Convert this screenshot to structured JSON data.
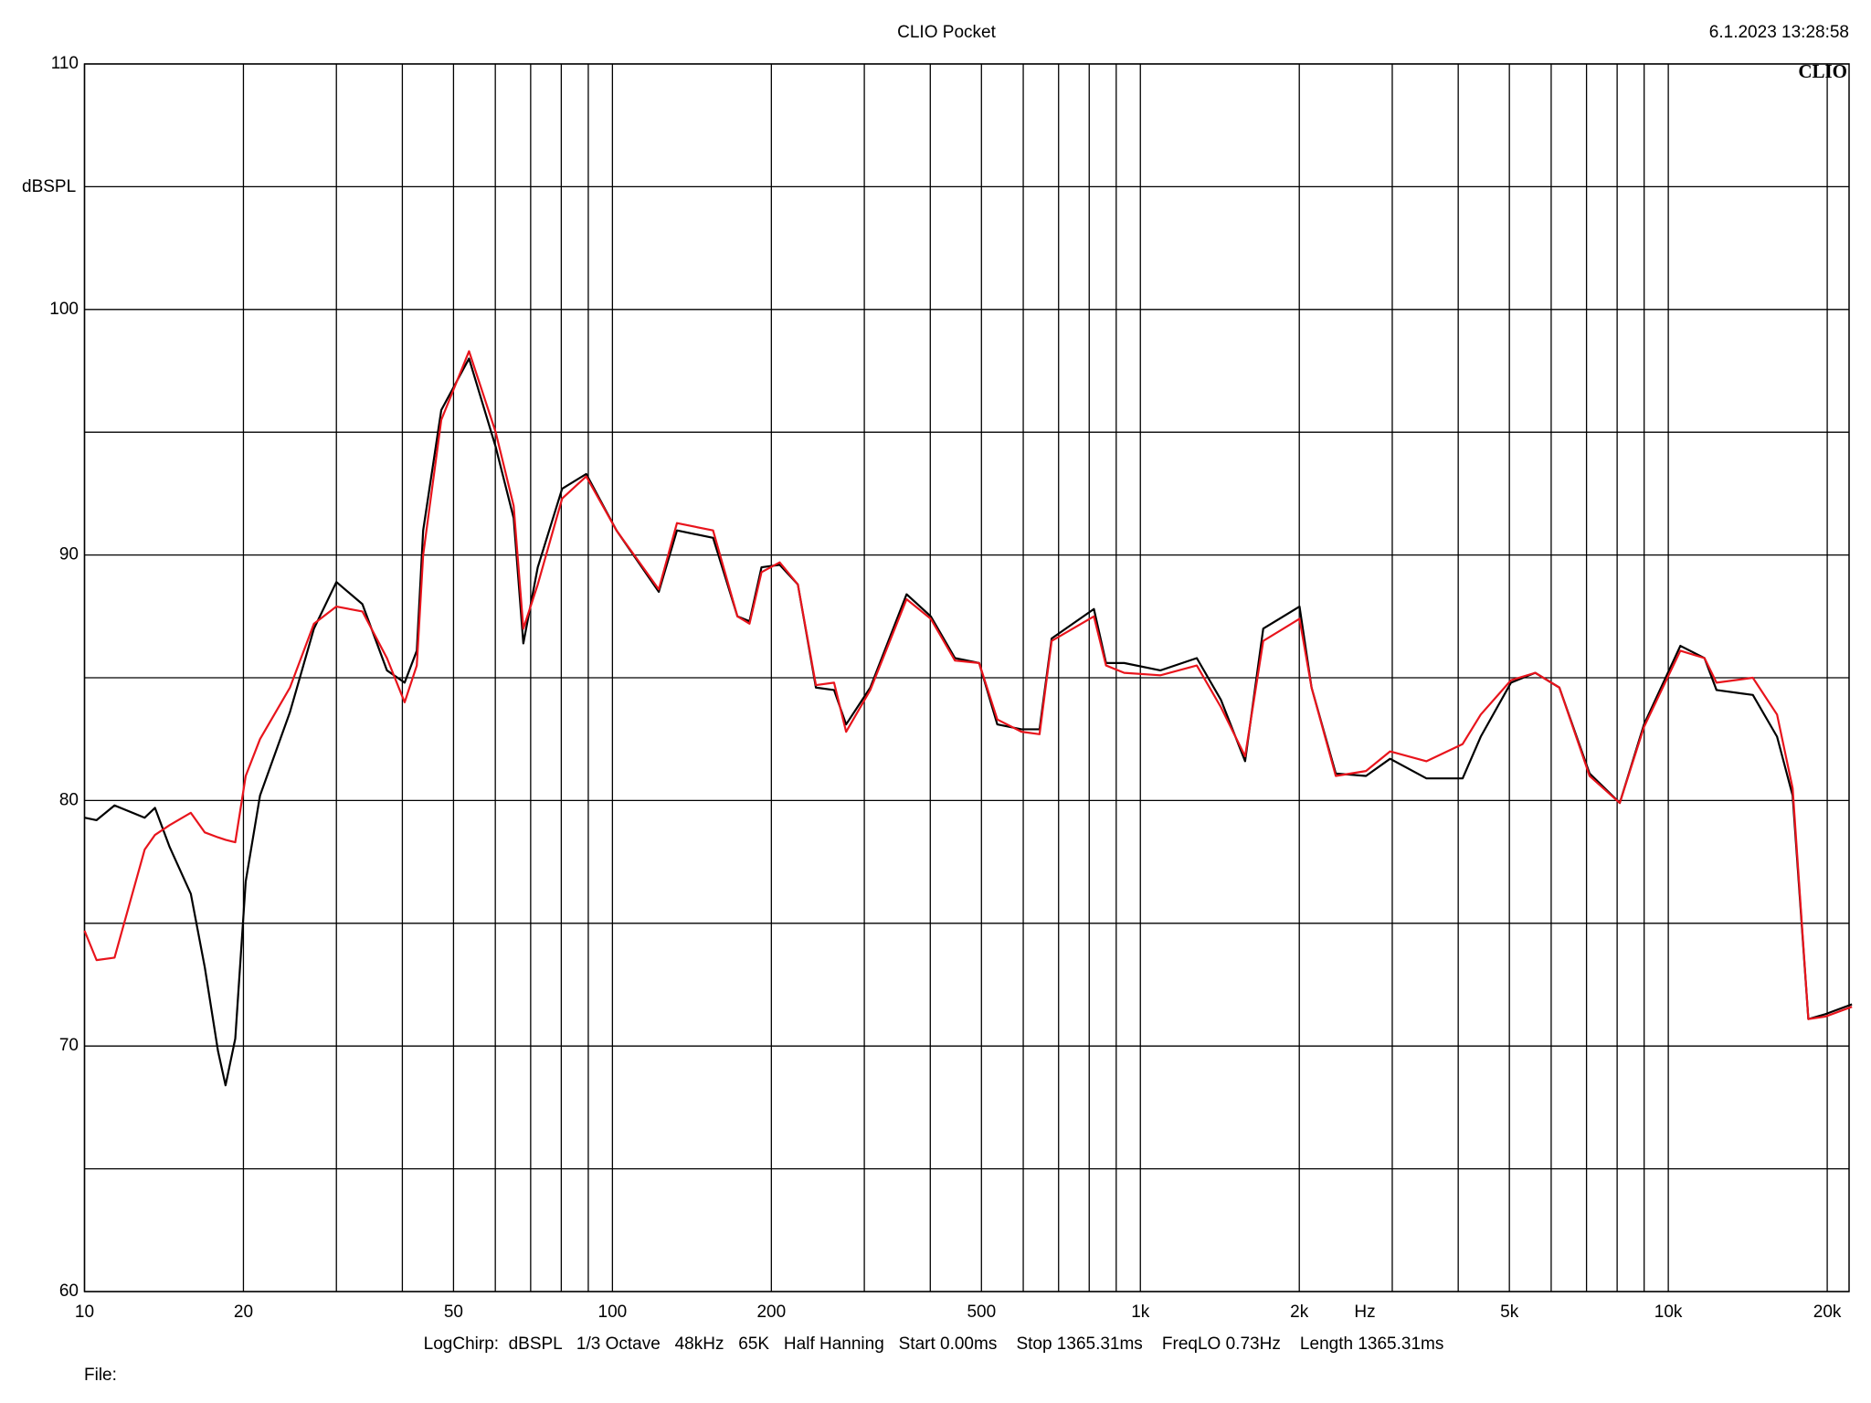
{
  "chart_data": {
    "type": "line",
    "title": "CLIO Pocket",
    "timestamp": "6.1.2023 13:28:58",
    "logo": "CLIO",
    "y_label": "dBSPL",
    "x_label": "Hz",
    "footer_info": "LogChirp:  dBSPL   1/3 Octave   48kHz   65K   Half Hanning   Start 0.00ms    Stop 1365.31ms    FreqLO 0.73Hz    Length 1365.31ms",
    "footer_file": "File:",
    "x_scale": "log",
    "grid": true,
    "xlim": [
      10,
      22000
    ],
    "ylim": [
      60,
      110
    ],
    "xticks": [
      10,
      20,
      50,
      100,
      200,
      500,
      {
        "value": 1000,
        "label": "1k"
      },
      {
        "value": 2000,
        "label": "2k"
      },
      {
        "value": 5000,
        "label": "5k"
      },
      {
        "value": 10000,
        "label": "10k"
      },
      {
        "value": 20000,
        "label": "20k"
      }
    ],
    "x_minor_ticks": [
      30,
      40,
      60,
      70,
      80,
      90,
      300,
      400,
      600,
      700,
      800,
      900,
      3000,
      4000,
      6000,
      7000,
      8000,
      9000
    ],
    "yticks": [
      60,
      70,
      80,
      90,
      100,
      110
    ],
    "y_minor_ticks": [
      65,
      75,
      85,
      95,
      105
    ],
    "x": [
      10,
      10.54,
      11.4,
      13.0,
      13.6,
      14.5,
      15.9,
      16.9,
      17.9,
      18.5,
      19.3,
      20.2,
      21.5,
      24.5,
      27.2,
      30.0,
      33.6,
      37.4,
      40.4,
      42.6,
      43.8,
      47.4,
      53.5,
      60.1,
      65.0,
      67.8,
      72.2,
      80.3,
      89.2,
      101.8,
      122.4,
      132.5,
      155.1,
      172.5,
      181.8,
      191.6,
      207.4,
      224.5,
      242.9,
      262.9,
      277.1,
      307.9,
      360.7,
      400.9,
      445.5,
      495.0,
      535.8,
      595.4,
      644.2,
      679.1,
      816.6,
      861,
      932,
      1091,
      1279,
      1421,
      1579,
      1709,
      2002,
      2110,
      2345,
      2675,
      2972,
      3483,
      4078,
      4413,
      5036,
      5596,
      6218,
      7095,
      8092,
      8995,
      10540,
      11710,
      12340,
      14460,
      16070,
      17200,
      18420,
      19840,
      22280
    ],
    "series": [
      {
        "color": "#000000",
        "values": [
          79.3,
          79.2,
          79.8,
          79.3,
          79.7,
          78.1,
          76.2,
          73.2,
          69.8,
          68.4,
          70.3,
          76.7,
          80.2,
          83.6,
          87.0,
          88.9,
          88.0,
          85.3,
          84.8,
          86.1,
          91.0,
          95.9,
          98.0,
          94.4,
          91.5,
          86.4,
          89.5,
          92.7,
          93.3,
          91.0,
          88.5,
          91.0,
          90.7,
          87.5,
          87.3,
          89.5,
          89.6,
          88.8,
          84.6,
          84.5,
          83.1,
          84.6,
          88.4,
          87.5,
          85.8,
          85.6,
          83.1,
          82.9,
          82.9,
          86.6,
          87.8,
          85.6,
          85.6,
          85.3,
          85.8,
          84.1,
          81.6,
          87.0,
          87.9,
          84.6,
          81.1,
          81.0,
          81.7,
          80.9,
          80.9,
          82.6,
          84.8,
          85.2,
          84.6,
          81.1,
          79.9,
          83.1,
          86.3,
          85.8,
          84.5,
          84.3,
          82.6,
          80.2,
          71.1,
          71.3,
          71.7
        ]
      },
      {
        "color": "#e8141c",
        "values": [
          74.7,
          73.5,
          73.6,
          78.0,
          78.6,
          79.0,
          79.5,
          78.7,
          78.5,
          78.4,
          78.3,
          81.0,
          82.5,
          84.6,
          87.2,
          87.9,
          87.7,
          85.8,
          84.0,
          85.5,
          90.0,
          95.5,
          98.3,
          95.0,
          92.0,
          87.0,
          88.8,
          92.3,
          93.2,
          91.0,
          88.6,
          91.3,
          91.0,
          87.5,
          87.2,
          89.3,
          89.7,
          88.8,
          84.7,
          84.8,
          82.8,
          84.5,
          88.2,
          87.4,
          85.7,
          85.6,
          83.3,
          82.8,
          82.7,
          86.5,
          87.5,
          85.5,
          85.2,
          85.1,
          85.5,
          83.8,
          81.8,
          86.5,
          87.4,
          84.6,
          81.0,
          81.2,
          82.0,
          81.6,
          82.3,
          83.5,
          84.9,
          85.2,
          84.6,
          81.0,
          79.9,
          83.0,
          86.1,
          85.8,
          84.8,
          85.0,
          83.5,
          80.5,
          71.1,
          71.2,
          71.6
        ]
      }
    ]
  }
}
